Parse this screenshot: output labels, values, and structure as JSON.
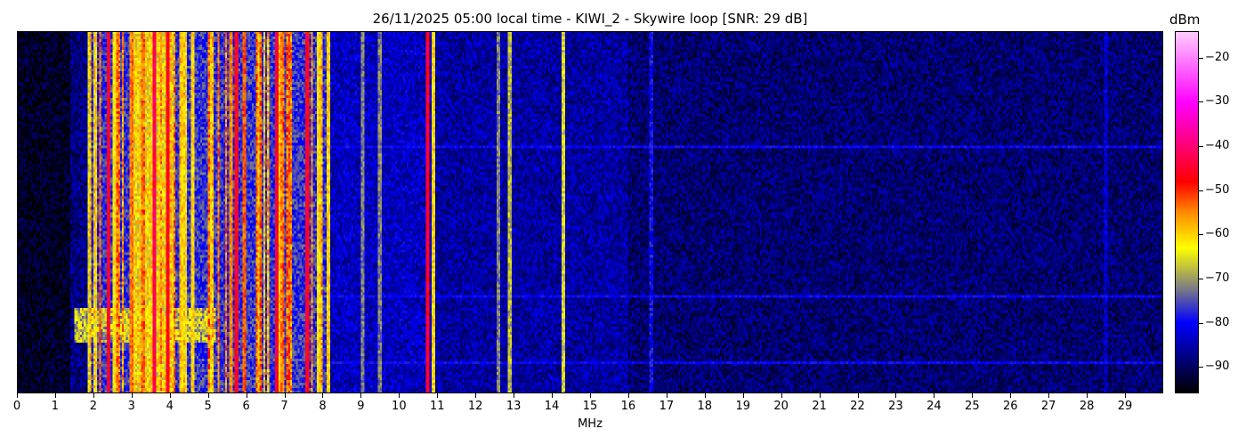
{
  "chart_data": {
    "type": "heatmap",
    "title": "26/11/2025 05:00 local time - KIWI_2 - Skywire loop [SNR: 29 dB]",
    "xlabel": "MHz",
    "ylabel": "",
    "xlim": [
      0,
      30
    ],
    "xticks": [
      "0",
      "1",
      "2",
      "3",
      "4",
      "5",
      "6",
      "7",
      "8",
      "9",
      "10",
      "11",
      "12",
      "13",
      "14",
      "15",
      "16",
      "17",
      "18",
      "19",
      "20",
      "21",
      "22",
      "23",
      "24",
      "25",
      "26",
      "27",
      "28",
      "29"
    ],
    "colorbar": {
      "label": "dBm",
      "range": [
        -96,
        -14
      ],
      "ticks": [
        "-20",
        "-30",
        "-40",
        "-50",
        "-60",
        "-70",
        "-80",
        "-90"
      ],
      "colormap": [
        {
          "v": -96,
          "color": "#000000"
        },
        {
          "v": -90,
          "color": "#000060"
        },
        {
          "v": -80,
          "color": "#0000ff"
        },
        {
          "v": -72,
          "color": "#808080"
        },
        {
          "v": -63,
          "color": "#ffff00"
        },
        {
          "v": -55,
          "color": "#ff8c00"
        },
        {
          "v": -48,
          "color": "#ff0000"
        },
        {
          "v": -30,
          "color": "#ff00ff"
        },
        {
          "v": -14,
          "color": "#ffccff"
        }
      ]
    },
    "grid": false,
    "noise_floor_dbm": [
      {
        "from_mhz": 0,
        "to_mhz": 1.4,
        "level": -94
      },
      {
        "from_mhz": 1.4,
        "to_mhz": 1.9,
        "level": -88
      },
      {
        "from_mhz": 1.9,
        "to_mhz": 8.2,
        "level": -77
      },
      {
        "from_mhz": 8.2,
        "to_mhz": 10.9,
        "level": -84
      },
      {
        "from_mhz": 10.9,
        "to_mhz": 16,
        "level": -86
      },
      {
        "from_mhz": 16,
        "to_mhz": 30,
        "level": -89
      }
    ],
    "carriers": [
      {
        "mhz": 1.9,
        "dbm": -65
      },
      {
        "mhz": 2.4,
        "dbm": -45
      },
      {
        "mhz": 2.55,
        "dbm": -62
      },
      {
        "mhz": 3.0,
        "dbm": -55
      },
      {
        "mhz": 3.3,
        "dbm": -58
      },
      {
        "mhz": 3.6,
        "dbm": -42
      },
      {
        "mhz": 3.95,
        "dbm": -46
      },
      {
        "mhz": 4.3,
        "dbm": -60
      },
      {
        "mhz": 4.6,
        "dbm": -60
      },
      {
        "mhz": 5.05,
        "dbm": -62
      },
      {
        "mhz": 5.6,
        "dbm": -55
      },
      {
        "mhz": 5.75,
        "dbm": -46
      },
      {
        "mhz": 5.95,
        "dbm": -52
      },
      {
        "mhz": 6.8,
        "dbm": -45
      },
      {
        "mhz": 6.95,
        "dbm": -60
      },
      {
        "mhz": 7.6,
        "dbm": -46
      },
      {
        "mhz": 7.9,
        "dbm": -62
      },
      {
        "mhz": 8.15,
        "dbm": -60
      },
      {
        "mhz": 9.05,
        "dbm": -72
      },
      {
        "mhz": 9.5,
        "dbm": -72
      },
      {
        "mhz": 10.75,
        "dbm": -45
      },
      {
        "mhz": 10.9,
        "dbm": -60
      },
      {
        "mhz": 12.6,
        "dbm": -72
      },
      {
        "mhz": 12.9,
        "dbm": -68
      },
      {
        "mhz": 14.3,
        "dbm": -66
      },
      {
        "mhz": 16.6,
        "dbm": -80
      },
      {
        "mhz": 28.5,
        "dbm": -83
      }
    ],
    "wideband": {
      "from_mhz": 3.0,
      "to_mhz": 4.1,
      "dbm": -62
    }
  }
}
